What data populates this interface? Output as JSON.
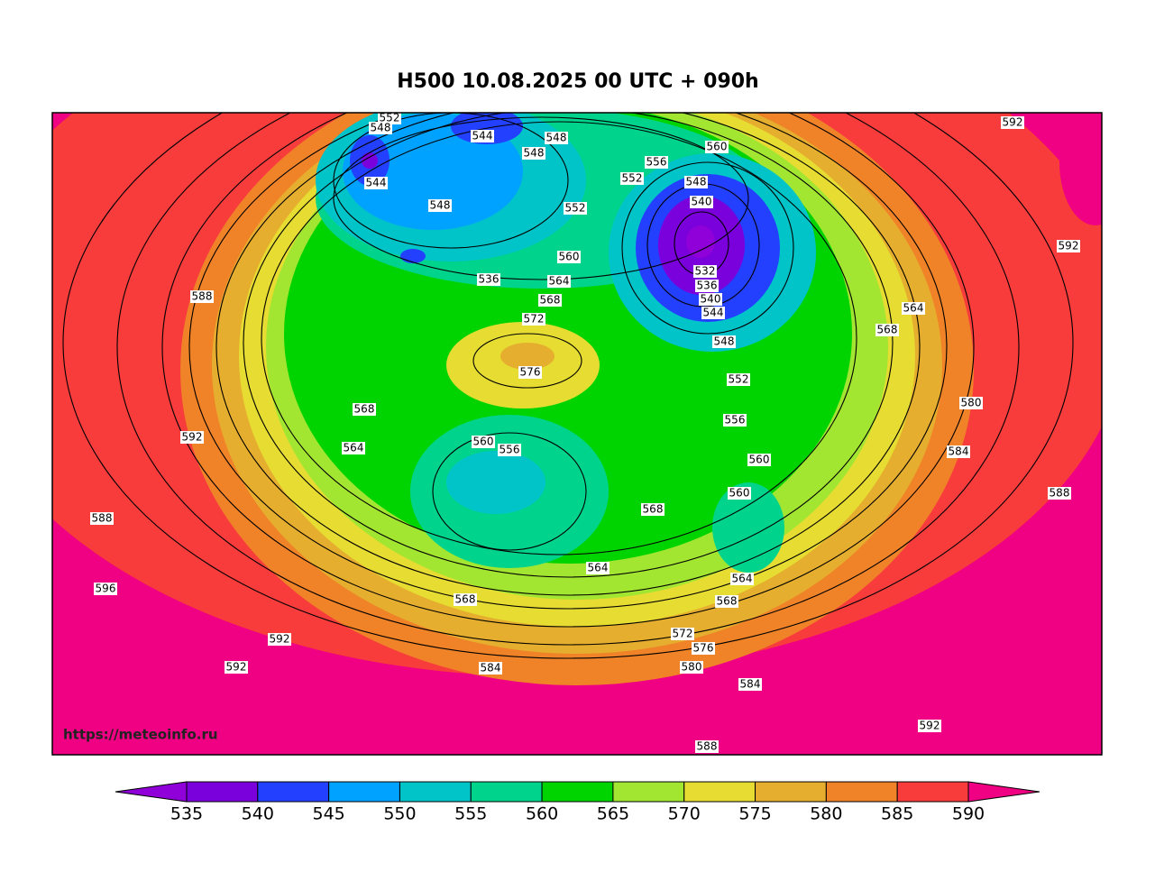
{
  "header": {
    "title": "H500  10.08.2025 00 UTC + 090h"
  },
  "map": {
    "watermark": "https://meteoinfo.ru",
    "contour_labels": [
      552,
      548,
      544,
      548,
      548,
      544,
      548,
      560,
      556,
      552,
      548,
      540,
      552,
      592,
      592,
      588,
      560,
      564,
      568,
      572,
      532,
      536,
      540,
      544,
      548,
      552,
      564,
      568,
      576,
      580,
      584,
      588,
      568,
      564,
      592,
      560,
      556,
      556,
      560,
      560,
      568,
      588,
      564,
      564,
      568,
      568,
      596,
      592,
      592,
      572,
      576,
      580,
      584,
      584,
      588,
      592,
      536
    ]
  },
  "colorbar": {
    "levels": [
      535,
      540,
      545,
      550,
      555,
      560,
      565,
      570,
      575,
      580,
      585,
      590
    ],
    "colors": [
      "#9000d8",
      "#7a00dc",
      "#2440ff",
      "#00a2ff",
      "#00c4c8",
      "#00d48c",
      "#00d400",
      "#a2e632",
      "#e6dc32",
      "#e6ae2e",
      "#f08228",
      "#f83c3c",
      "#f00082"
    ]
  }
}
